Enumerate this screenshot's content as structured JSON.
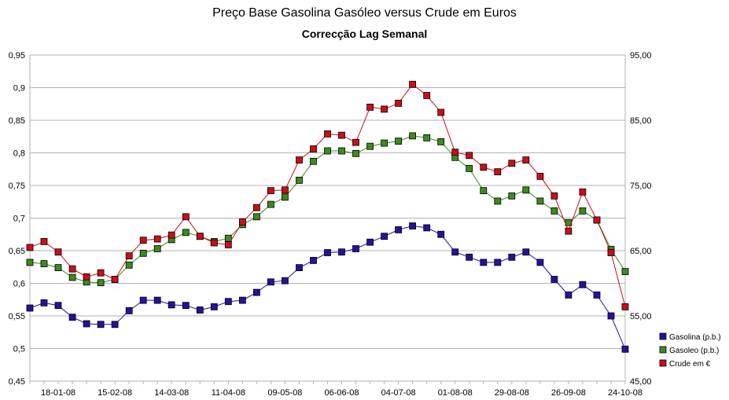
{
  "chart_data": {
    "type": "line",
    "title": "Preço Base Gasolina Gasóleo versus Crude em Euros",
    "subtitle": "Correcção Lag Semanal",
    "x_tick_labels": [
      "18-01-08",
      "15-02-08",
      "14-03-08",
      "11-04-08",
      "09-05-08",
      "06-06-08",
      "04-07-08",
      "01-08-08",
      "29-08-08",
      "26-09-08",
      "24-10-08"
    ],
    "y_left": {
      "min": 0.45,
      "max": 0.95,
      "ticks": [
        "0,45",
        "0,5",
        "0,55",
        "0,6",
        "0,65",
        "0,7",
        "0,75",
        "0,8",
        "0,85",
        "0,9",
        "0,95"
      ]
    },
    "y_right": {
      "min": 45,
      "max": 95,
      "ticks": [
        "45,00",
        "55,00",
        "65,00",
        "75,00",
        "85,00",
        "95,00"
      ]
    },
    "grid": true,
    "legend_position": "right",
    "n_points": 43,
    "series": [
      {
        "name": "Gasolina (p.b.)",
        "axis": "left",
        "color": "#2a0f9e",
        "values": [
          0.562,
          0.57,
          0.566,
          0.548,
          0.538,
          0.537,
          0.537,
          0.558,
          0.574,
          0.574,
          0.567,
          0.566,
          0.559,
          0.564,
          0.572,
          0.574,
          0.586,
          0.602,
          0.604,
          0.624,
          0.635,
          0.647,
          0.648,
          0.653,
          0.663,
          0.672,
          0.682,
          0.688,
          0.685,
          0.675,
          0.648,
          0.64,
          0.632,
          0.632,
          0.64,
          0.648,
          0.632,
          0.606,
          0.582,
          0.598,
          0.582,
          0.55,
          0.499
        ]
      },
      {
        "name": "Gasoleo (p.b.)",
        "axis": "left",
        "color": "#3d8a1e",
        "values": [
          0.632,
          0.63,
          0.624,
          0.609,
          0.602,
          0.601,
          0.606,
          0.628,
          0.646,
          0.653,
          0.667,
          0.678,
          0.672,
          0.664,
          0.669,
          0.69,
          0.702,
          0.721,
          0.732,
          0.758,
          0.787,
          0.803,
          0.803,
          0.799,
          0.81,
          0.815,
          0.818,
          0.826,
          0.823,
          0.817,
          0.793,
          0.776,
          0.742,
          0.726,
          0.734,
          0.743,
          0.726,
          0.711,
          0.693,
          0.711,
          0.697,
          0.652,
          0.618
        ]
      },
      {
        "name": "Crude em €",
        "axis": "right",
        "color": "#c8101a",
        "values": [
          65.5,
          66.4,
          64.8,
          62.2,
          61.0,
          61.6,
          60.6,
          64.2,
          66.6,
          66.8,
          67.4,
          70.2,
          67.2,
          66.2,
          65.9,
          69.4,
          71.6,
          74.2,
          74.3,
          78.9,
          80.6,
          82.9,
          82.7,
          81.6,
          87.0,
          86.7,
          87.6,
          90.5,
          88.8,
          86.2,
          80.1,
          79.6,
          77.8,
          77.1,
          78.4,
          78.9,
          76.4,
          73.4,
          68.0,
          74.0,
          69.7,
          64.7,
          56.4
        ]
      }
    ]
  }
}
